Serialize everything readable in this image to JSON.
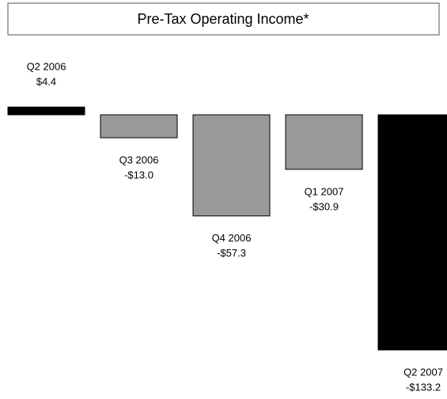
{
  "chart_data": {
    "type": "bar",
    "title": "Pre-Tax Operating Income*",
    "categories": [
      "Q2 2006",
      "Q3 2006",
      "Q4 2006",
      "Q1 2007",
      "Q2 2007"
    ],
    "values": [
      4.4,
      -13.0,
      -57.3,
      -30.9,
      -133.2
    ],
    "value_labels": [
      "$4.4",
      "-$13.0",
      "-$57.3",
      "-$30.9",
      "-$133.2"
    ],
    "colors": [
      "#000000",
      "#999999",
      "#999999",
      "#999999",
      "#000000"
    ]
  }
}
